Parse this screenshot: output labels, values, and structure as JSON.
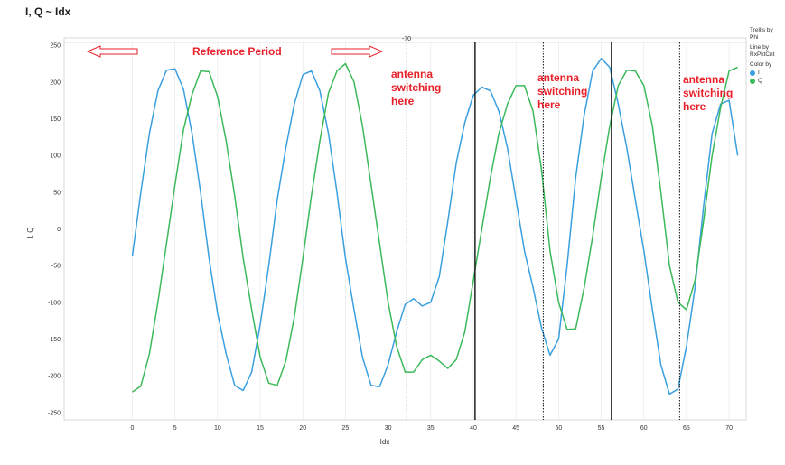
{
  "chart_data": {
    "type": "line",
    "title": "I, Q ~ Idx",
    "xlabel": "Idx",
    "ylabel": "I, Q",
    "xlim": [
      -8,
      72
    ],
    "ylim": [
      -260,
      260
    ],
    "x_ticks": [
      0,
      5,
      10,
      15,
      20,
      25,
      30,
      35,
      40,
      45,
      50,
      55,
      60,
      65,
      70
    ],
    "y_ticks": [
      -250,
      -200,
      -150,
      -100,
      -50,
      0,
      50,
      100,
      150,
      200,
      250
    ],
    "top_annotation": "-70",
    "series": [
      {
        "name": "I",
        "color": "#3a9fe0",
        "x": [
          0,
          1,
          2,
          3,
          4,
          5,
          6,
          7,
          8,
          9,
          10,
          11,
          12,
          13,
          14,
          15,
          16,
          17,
          18,
          19,
          20,
          21,
          22,
          23,
          24,
          25,
          26,
          27,
          28,
          29,
          30,
          31,
          32,
          33,
          34,
          35,
          36,
          37,
          38,
          39,
          40,
          41,
          42,
          43,
          44,
          45,
          46,
          47,
          48,
          49,
          50,
          51,
          52,
          53,
          54,
          55,
          56,
          57,
          58,
          59,
          60,
          61,
          62,
          63,
          64,
          65,
          66,
          67,
          68,
          69,
          70,
          71
        ],
        "values": [
          -37,
          50,
          130,
          188,
          216,
          218,
          190,
          130,
          50,
          -40,
          -115,
          -170,
          -213,
          -220,
          -195,
          -130,
          -50,
          40,
          110,
          170,
          210,
          215,
          188,
          130,
          50,
          -40,
          -110,
          -175,
          -213,
          -215,
          -185,
          -140,
          -103,
          -95,
          -105,
          -100,
          -65,
          10,
          90,
          145,
          182,
          193,
          188,
          160,
          110,
          40,
          -30,
          -80,
          -135,
          -172,
          -150,
          -50,
          70,
          155,
          215,
          232,
          220,
          170,
          110,
          40,
          -30,
          -110,
          -185,
          -225,
          -218,
          -160,
          -80,
          30,
          130,
          170,
          175,
          100
        ]
      },
      {
        "name": "Q",
        "color": "#3cb95a",
        "x": [
          0,
          1,
          2,
          3,
          4,
          5,
          6,
          7,
          8,
          9,
          10,
          11,
          12,
          13,
          14,
          15,
          16,
          17,
          18,
          19,
          20,
          21,
          22,
          23,
          24,
          25,
          26,
          27,
          28,
          29,
          30,
          31,
          32,
          33,
          34,
          35,
          36,
          37,
          38,
          39,
          40,
          41,
          42,
          43,
          44,
          45,
          46,
          47,
          48,
          49,
          50,
          51,
          52,
          53,
          54,
          55,
          56,
          57,
          58,
          59,
          60,
          61,
          62,
          63,
          64,
          65,
          66,
          67,
          68,
          69,
          70,
          71
        ],
        "values": [
          -222,
          -214,
          -170,
          -100,
          -20,
          60,
          135,
          183,
          215,
          214,
          180,
          120,
          45,
          -40,
          -110,
          -175,
          -210,
          -213,
          -180,
          -120,
          -40,
          45,
          120,
          185,
          215,
          225,
          200,
          140,
          60,
          -20,
          -100,
          -160,
          -195,
          -195,
          -178,
          -172,
          -180,
          -190,
          -178,
          -140,
          -70,
          0,
          70,
          130,
          170,
          195,
          195,
          160,
          80,
          -30,
          -100,
          -137,
          -136,
          -80,
          -10,
          70,
          140,
          195,
          216,
          215,
          195,
          140,
          50,
          -50,
          -100,
          -110,
          -70,
          10,
          100,
          165,
          215,
          220
        ]
      }
    ],
    "vlines": [
      {
        "x": 32.2,
        "style": "dotted"
      },
      {
        "x": 40.2,
        "style": "solid"
      },
      {
        "x": 48.2,
        "style": "dotted"
      },
      {
        "x": 56.2,
        "style": "solid"
      },
      {
        "x": 64.2,
        "style": "dotted"
      }
    ],
    "annotations": {
      "reference_period": "Reference Period",
      "antenna_lines": [
        "antenna",
        "switching",
        "here"
      ]
    },
    "legend": {
      "trellis_label": "Trellis by",
      "trellis_value": "Phi",
      "line_label": "Line by",
      "line_value": "RxPktCnt",
      "color_label": "Color by",
      "items": [
        "I",
        "Q"
      ]
    },
    "grid": true,
    "legend_position": "right"
  }
}
